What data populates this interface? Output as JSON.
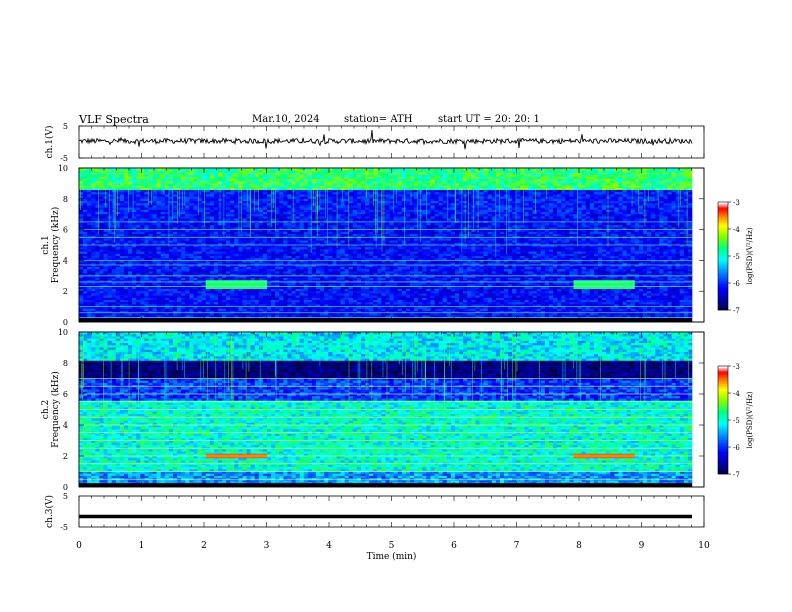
{
  "header": {
    "title": "VLF Spectra",
    "date": "Mar.10, 2024",
    "station": "station= ATH",
    "start_ut": "start UT = 20: 20: 1"
  },
  "chart_data": [
    {
      "type": "line",
      "panel": "ch1-waveform",
      "ylabel": "ch.1(V)",
      "yticks": [
        "5",
        "-5"
      ],
      "ylim": [
        -5,
        5
      ],
      "xlim": [
        0,
        10
      ],
      "trace_color": "#000000",
      "description_level": 0.3
    },
    {
      "type": "heatmap",
      "panel": "ch1-spectrogram",
      "ylabel_lines": [
        "ch.1",
        "Frequency (kHz)"
      ],
      "yticks": [
        "0",
        "2",
        "4",
        "6",
        "8",
        "10"
      ],
      "ylim": [
        0,
        10
      ],
      "xlim": [
        0,
        10
      ],
      "bands_khz": [
        0.3,
        0.6,
        1.0,
        2.3,
        2.6,
        3.0,
        3.7,
        4.0,
        5.0,
        5.5,
        6.0,
        6.5
      ],
      "colorbar": {
        "label": "log(PSD)(V²/Hz)",
        "ticks": [
          "-3",
          "-4",
          "-5",
          "-6",
          "-7"
        ],
        "range": [
          -7,
          -3
        ]
      }
    },
    {
      "type": "heatmap",
      "panel": "ch2-spectrogram",
      "ylabel_lines": [
        "ch.2",
        "Frequency (kHz)"
      ],
      "yticks": [
        "0",
        "2",
        "4",
        "6",
        "8",
        "10"
      ],
      "ylim": [
        0,
        10
      ],
      "xlim": [
        0,
        10
      ],
      "bands_khz": [
        0.5,
        1.0,
        1.5,
        2.0,
        2.5,
        3.0,
        3.5,
        4.0,
        4.5,
        5.0,
        5.5,
        6.0,
        6.5,
        7.0
      ],
      "colorbar": {
        "label": "log(PSD)(V²/Hz)",
        "ticks": [
          "-3",
          "-4",
          "-5",
          "-6",
          "-7"
        ],
        "range": [
          -7,
          -3
        ]
      }
    },
    {
      "type": "line",
      "panel": "ch3-waveform",
      "ylabel": "ch.3(V)",
      "yticks": [
        "5",
        "-5"
      ],
      "ylim": [
        -5,
        5
      ],
      "xlim": [
        0,
        10
      ],
      "trace_color": "#000000",
      "level": -1.6
    }
  ],
  "xaxis": {
    "label": "Time (min)",
    "ticks": [
      "0",
      "1",
      "2",
      "3",
      "4",
      "5",
      "6",
      "7",
      "8",
      "9",
      "10"
    ]
  },
  "colors": {
    "palette": [
      "#000000",
      "#00008b",
      "#0000ff",
      "#0080ff",
      "#00ffff",
      "#00ff80",
      "#80ff00",
      "#ffff00",
      "#ff8000",
      "#ff0000",
      "#ffffff"
    ]
  }
}
